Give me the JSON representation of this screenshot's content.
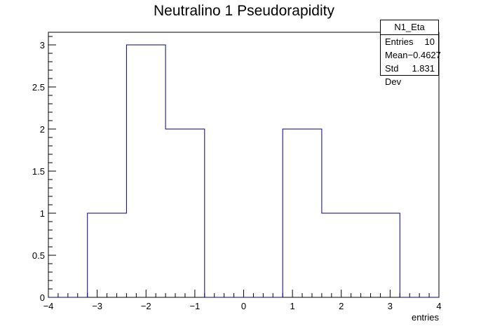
{
  "chart_data": {
    "type": "bar",
    "title": "Neutralino 1 Pseudorapidity",
    "xlabel": "entries",
    "ylabel": "",
    "xlim": [
      -4,
      4
    ],
    "ylim": [
      0,
      3.15
    ],
    "bin_edges": [
      -4.0,
      -3.2,
      -2.4,
      -1.6,
      -0.8,
      0.0,
      0.8,
      1.6,
      2.4,
      3.2,
      4.0
    ],
    "values": [
      0,
      1,
      3,
      2,
      0,
      0,
      2,
      1,
      1,
      0
    ],
    "x_ticks": [
      "−4",
      "−3",
      "−2",
      "−1",
      "0",
      "1",
      "2",
      "3",
      "4"
    ],
    "y_ticks": [
      "0",
      "0.5",
      "1",
      "1.5",
      "2",
      "2.5",
      "3"
    ],
    "line_color": "#000080",
    "stats": {
      "name": "N1_Eta",
      "entries_label": "Entries",
      "entries_value": "10",
      "mean_label": "Mean",
      "mean_value": "−0.4627",
      "stddev_label": "Std Dev",
      "stddev_value": "1.831"
    }
  }
}
